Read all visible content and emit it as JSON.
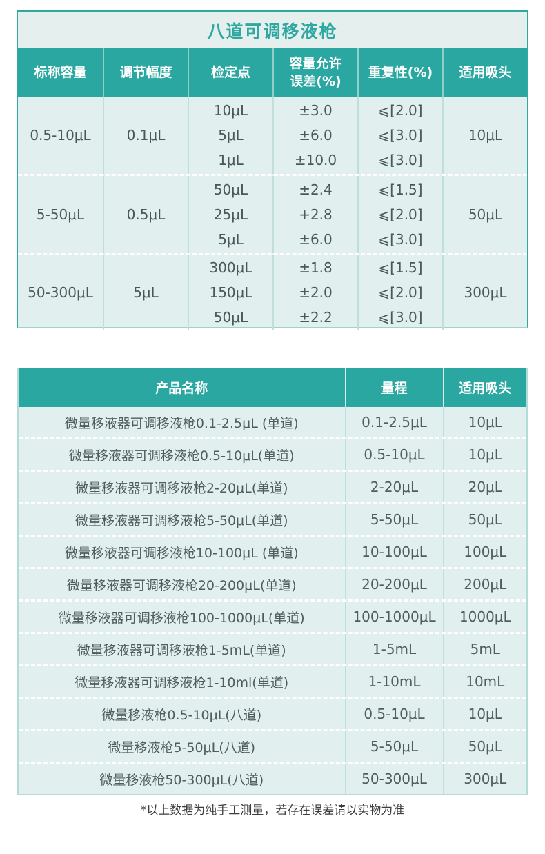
{
  "colors": {
    "teal_accent": "#2aa7a0",
    "cell_bg": "#e1efee",
    "title_bg": "#e5efee",
    "header_text": "#ffffff",
    "body_text": "#49585a"
  },
  "table1": {
    "title": "八道可调移液枪",
    "headers": [
      "标称容量",
      "调节幅度",
      "检定点",
      "容量允许\n误差(%)",
      "重复性(%)",
      "适用吸头"
    ],
    "rows": [
      [
        "0.5-10μL",
        "0.1μL",
        "10μL\n5μL\n1μL",
        "±3.0\n±6.0\n±10.0",
        "⩽[2.0]\n⩽[3.0]\n⩽[3.0]",
        "10μL"
      ],
      [
        "5-50μL",
        "0.5μL",
        "50μL\n25μL\n5μL",
        "±2.4\n+2.8\n±6.0",
        "⩽[1.5]\n⩽[2.0]\n⩽[3.0]",
        "50μL"
      ],
      [
        "50-300μL",
        "5μL",
        "300μL\n150μL\n50μL",
        "±1.8\n±2.0\n±2.2",
        "⩽[1.5]\n⩽[2.0]\n⩽[3.0]",
        "300μL"
      ]
    ]
  },
  "table2": {
    "headers": [
      "产品名称",
      "量程",
      "适用吸头"
    ],
    "rows": [
      [
        "微量移液器可调移液枪0.1-2.5μL (单道)",
        "0.1-2.5μL",
        "10μL"
      ],
      [
        "微量移液器可调移液枪0.5-10μL(单道)",
        "0.5-10μL",
        "10μL"
      ],
      [
        "微量移液器可调移液枪2-20μL(单道)",
        "2-20μL",
        "20μL"
      ],
      [
        "微量移液器可调移液枪5-50μL(单道)",
        "5-50μL",
        "50μL"
      ],
      [
        "微量移液器可调移液枪10-100μL (单道)",
        "10-100μL",
        "100μL"
      ],
      [
        "微量移液器可调移液枪20-200μL(单道)",
        "20-200μL",
        "200μL"
      ],
      [
        "微量移液器可调移液枪100-1000μL(单道)",
        "100-1000μL",
        "1000μL"
      ],
      [
        "微量移液器可调移液枪1-5mL(单道)",
        "1-5mL",
        "5mL"
      ],
      [
        "微量移液器可调移液枪1-10ml(单道)",
        "1-10mL",
        "10mL"
      ],
      [
        "微量移液枪0.5-10μL(八道)",
        "0.5-10μL",
        "10μL"
      ],
      [
        "微量移液枪5-50μL(八道)",
        "5-50μL",
        "50μL"
      ],
      [
        "微量移液枪50-300μL(八道)",
        "50-300μL",
        "300μL"
      ]
    ]
  },
  "footnote": "*以上数据为纯手工测量，若存在误差请以实物为准"
}
